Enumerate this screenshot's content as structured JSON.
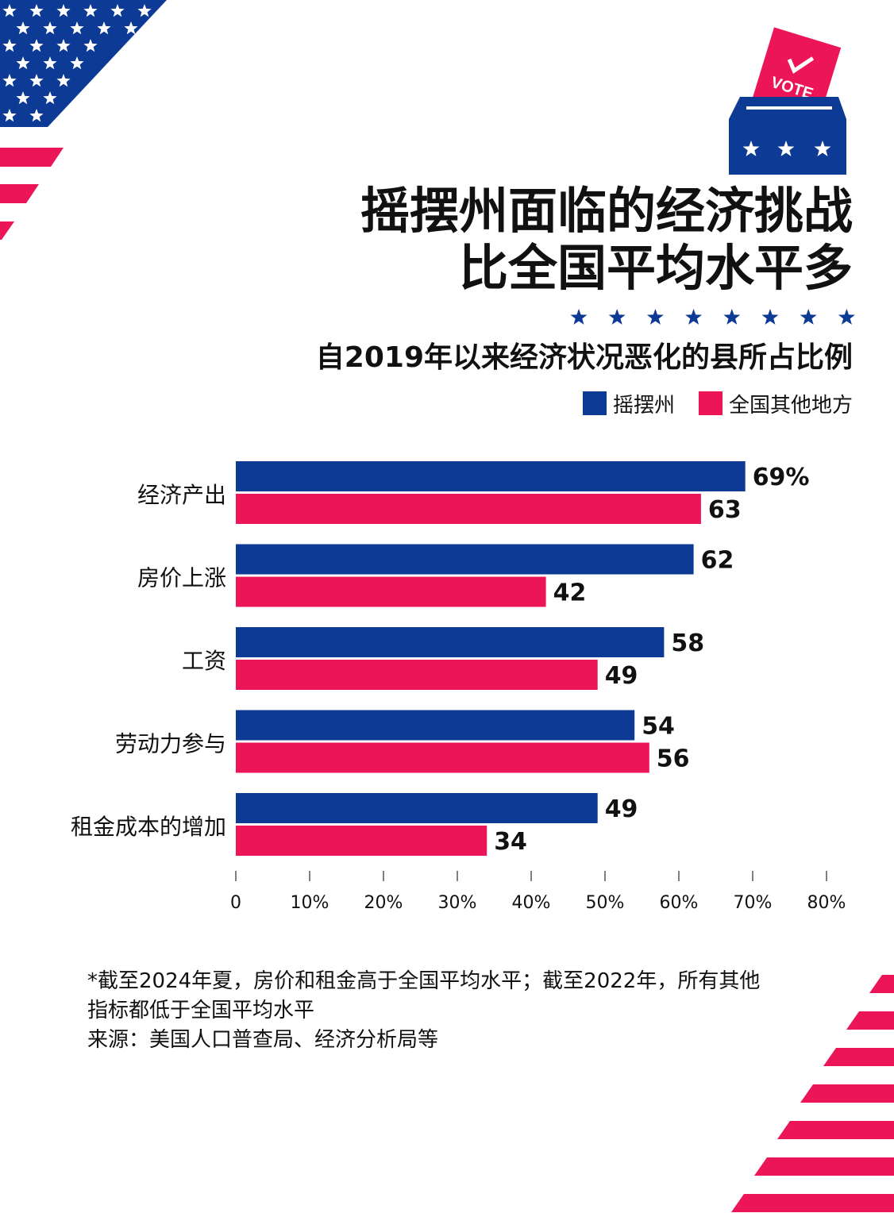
{
  "title": {
    "line1": "摇摆州面临的经济挑战",
    "line2": "比全国平均水平多"
  },
  "subtitle": "自2019年以来经济状况恶化的县所占比例",
  "vote_label": "VOTE",
  "colors": {
    "swing": "#0d3a94",
    "rest": "#ec1558",
    "text": "#111111",
    "axis": "#555555"
  },
  "chart_data": {
    "type": "bar",
    "orientation": "horizontal",
    "categories": [
      "经济产出",
      "房价上涨",
      "工资",
      "劳动力参与",
      "租金成本的增加"
    ],
    "series": [
      {
        "name": "摇摆州",
        "values": [
          69,
          62,
          58,
          54,
          49
        ],
        "labels": [
          "69%",
          "62",
          "58",
          "54",
          "49"
        ]
      },
      {
        "name": "全国其他地方",
        "values": [
          63,
          42,
          49,
          56,
          34
        ],
        "labels": [
          "63",
          "42",
          "49",
          "56",
          "34"
        ]
      }
    ],
    "x_ticks": [
      "0",
      "10%",
      "20%",
      "30%",
      "40%",
      "50%",
      "60%",
      "70%",
      "80%"
    ],
    "xlim": [
      0,
      80
    ],
    "legend_position": "top-right",
    "grid": false
  },
  "footnote": {
    "line1": "*截至2024年夏，房价和租金高于全国平均水平；截至2022年，所有其他",
    "line2": "指标都低于全国平均水平",
    "line3": "来源：美国人口普查局、经济分析局等"
  }
}
